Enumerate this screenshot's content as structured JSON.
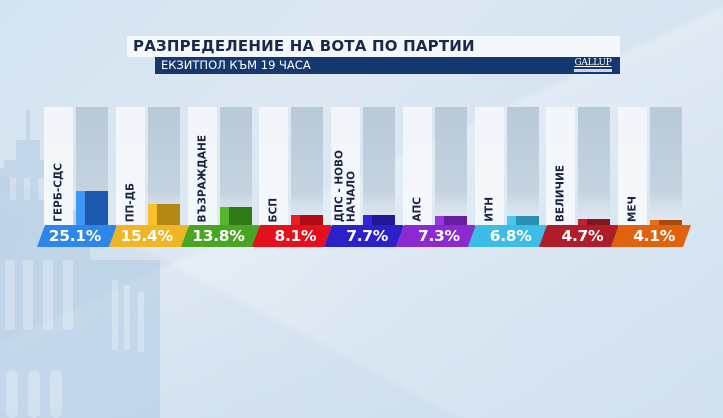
{
  "header": {
    "title": "РАЗПРЕДЕЛЕНИЕ НА ВОТА ПО ПАРТИИ",
    "subtitle": "ЕКЗИТПОЛ КЪМ 19 ЧАСА",
    "logo_text": "GALLUP",
    "logo_subtext": "INTERNATIONAL"
  },
  "chart_data": {
    "type": "bar",
    "title": "РАЗПРЕДЕЛЕНИЕ НА ВОТА ПО ПАРТИИ",
    "subtitle": "ЕКЗИТПОЛ КЪМ 19 ЧАСА",
    "xlabel": "",
    "ylabel": "",
    "categories": [
      "ГЕРБ-СДС",
      "ПП-ДБ",
      "ВЪЗРАЖДАНЕ",
      "БСП",
      "ДПС - НОВО НАЧАЛО",
      "АПС",
      "ИТН",
      "ВЕЛИЧИЕ",
      "МЕЧ"
    ],
    "values": [
      25.1,
      15.4,
      13.8,
      8.1,
      7.7,
      7.3,
      6.8,
      4.7,
      4.1
    ],
    "unit": "%",
    "source": "GALLUP INTERNATIONAL"
  },
  "parties": [
    {
      "name": "ГЕРБ-СДС",
      "value": 25.1,
      "label": "25.1%",
      "color": "#2f86ea",
      "light": "#3f97f4",
      "dark": "#1d5aad"
    },
    {
      "name": "ПП-ДБ",
      "value": 15.4,
      "label": "15.4%",
      "color": "#f0b525",
      "light": "#f7c12a",
      "dark": "#b48712"
    },
    {
      "name": "ВЪЗРАЖДАНЕ",
      "value": 13.8,
      "label": "13.8%",
      "color": "#4aa524",
      "light": "#56b52a",
      "dark": "#2f7a18"
    },
    {
      "name": "БСП",
      "value": 8.1,
      "label": "8.1%",
      "color": "#e5101c",
      "light": "#ee1c24",
      "dark": "#b00c16"
    },
    {
      "name": "ДПС - НОВО\nНАЧАЛО",
      "value": 7.7,
      "label": "7.7%",
      "color": "#2a22c8",
      "light": "#3228d8",
      "dark": "#1e1898"
    },
    {
      "name": "АПС",
      "value": 7.3,
      "label": "7.3%",
      "color": "#8a2ad0",
      "light": "#9a36de",
      "dark": "#6a1ea4"
    },
    {
      "name": "ИТН",
      "value": 6.8,
      "label": "6.8%",
      "color": "#3bbde8",
      "light": "#48c6ef",
      "dark": "#2a8fb0"
    },
    {
      "name": "ВЕЛИЧИЕ",
      "value": 4.7,
      "label": "4.7%",
      "color": "#b01c28",
      "light": "#c0222e",
      "dark": "#86141c"
    },
    {
      "name": "МЕЧ",
      "value": 4.1,
      "label": "4.1%",
      "color": "#e0620e",
      "light": "#e87018",
      "dark": "#a8480a"
    }
  ]
}
